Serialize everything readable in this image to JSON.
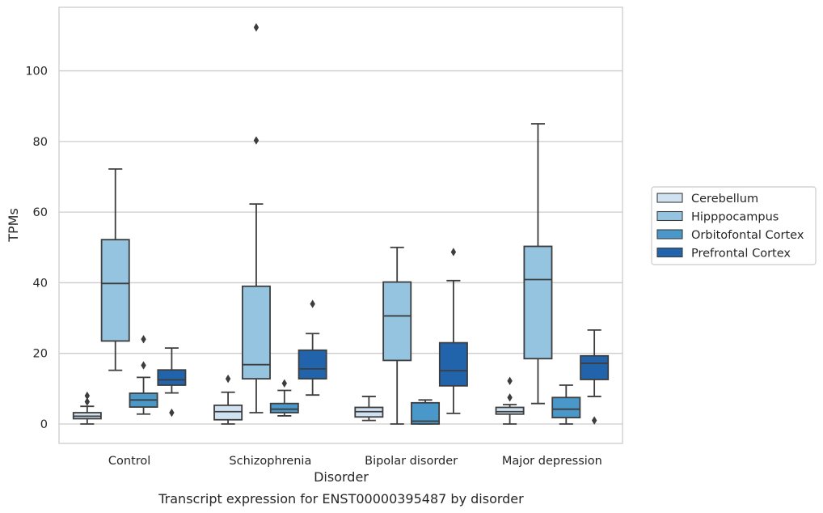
{
  "chart_data": {
    "type": "box",
    "caption": "Transcript expression for ENST00000395487 by disorder",
    "xlabel": "Disorder",
    "ylabel": "TPMs",
    "ylim": [
      -5.5,
      118
    ],
    "yticks": [
      0,
      20,
      40,
      60,
      80,
      100
    ],
    "grid": "horizontal",
    "legend_position": "right",
    "categories": [
      "Control",
      "Schizophrenia",
      "Bipolar disorder",
      "Major depression"
    ],
    "series": [
      {
        "name": "Cerebellum",
        "color": "#d0e1f2",
        "boxes": [
          {
            "whisker_low": 0,
            "q1": 1.5,
            "median": 2.2,
            "q3": 3.2,
            "whisker_high": 5.0,
            "outliers": [
              6.3,
              8.0
            ]
          },
          {
            "whisker_low": 0,
            "q1": 1.2,
            "median": 3.5,
            "q3": 5.3,
            "whisker_high": 9.0,
            "outliers": [
              12.8
            ]
          },
          {
            "whisker_low": 1.0,
            "q1": 2.0,
            "median": 3.5,
            "q3": 4.7,
            "whisker_high": 7.8,
            "outliers": []
          },
          {
            "whisker_low": 0,
            "q1": 2.8,
            "median": 3.5,
            "q3": 4.7,
            "whisker_high": 5.5,
            "outliers": [
              7.5,
              12.2
            ]
          }
        ]
      },
      {
        "name": "Hipppocampus",
        "color": "#94c4df",
        "boxes": [
          {
            "whisker_low": 15.2,
            "q1": 23.5,
            "median": 39.8,
            "q3": 52.2,
            "whisker_high": 72.2,
            "outliers": []
          },
          {
            "whisker_low": 3.2,
            "q1": 12.8,
            "median": 16.8,
            "q3": 39.0,
            "whisker_high": 62.3,
            "outliers": [
              80.3,
              112.3
            ]
          },
          {
            "whisker_low": 0,
            "q1": 18.0,
            "median": 30.6,
            "q3": 40.2,
            "whisker_high": 50.0,
            "outliers": []
          },
          {
            "whisker_low": 5.8,
            "q1": 18.5,
            "median": 40.9,
            "q3": 50.3,
            "whisker_high": 85.0,
            "outliers": []
          }
        ]
      },
      {
        "name": "Orbitofontal Cortex",
        "color": "#4a98c9",
        "boxes": [
          {
            "whisker_low": 2.8,
            "q1": 4.8,
            "median": 6.8,
            "q3": 8.7,
            "whisker_high": 13.2,
            "outliers": [
              16.6,
              24.0
            ]
          },
          {
            "whisker_low": 2.3,
            "q1": 3.2,
            "median": 4.2,
            "q3": 5.8,
            "whisker_high": 9.5,
            "outliers": [
              11.5
            ]
          },
          {
            "whisker_low": 0,
            "q1": 0,
            "median": 0.8,
            "q3": 6.0,
            "whisker_high": 6.8,
            "outliers": []
          },
          {
            "whisker_low": 0,
            "q1": 1.8,
            "median": 4.2,
            "q3": 7.5,
            "whisker_high": 11.0,
            "outliers": []
          }
        ]
      },
      {
        "name": "Prefrontal Cortex",
        "color": "#2164ab",
        "boxes": [
          {
            "whisker_low": 8.8,
            "q1": 11.0,
            "median": 12.5,
            "q3": 15.3,
            "whisker_high": 21.5,
            "outliers": [
              3.2
            ]
          },
          {
            "whisker_low": 8.2,
            "q1": 12.8,
            "median": 15.6,
            "q3": 20.9,
            "whisker_high": 25.6,
            "outliers": [
              34.0
            ]
          },
          {
            "whisker_low": 3.0,
            "q1": 10.8,
            "median": 15.1,
            "q3": 23.0,
            "whisker_high": 40.6,
            "outliers": [
              48.7
            ]
          },
          {
            "whisker_low": 7.8,
            "q1": 12.6,
            "median": 17.2,
            "q3": 19.3,
            "whisker_high": 26.6,
            "outliers": [
              1.0
            ]
          }
        ]
      }
    ]
  }
}
